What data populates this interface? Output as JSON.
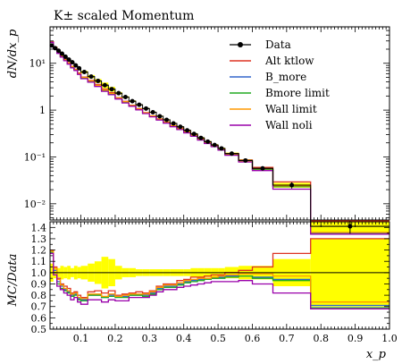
{
  "chart_data": {
    "type": "line",
    "title": "K± scaled Momentum",
    "ylabel_top": "dN/dx_p",
    "ylabel_bottom": "MC/Data",
    "xlabel": "x_p",
    "xlim": [
      0.01,
      1.0
    ],
    "ylim_top": [
      0.0045,
      60
    ],
    "yscale_top": "log",
    "ylim_bottom": [
      0.5,
      1.45
    ],
    "legend_position": "top-right",
    "x_ticks": [
      "0.1",
      "0.2",
      "0.3",
      "0.4",
      "0.5",
      "0.6",
      "0.7",
      "0.8",
      "0.9",
      "1.0"
    ],
    "y_ticks_top": [
      "10⁻²",
      "10⁻¹",
      "1",
      "10¹"
    ],
    "y_ticks_bottom": [
      "0.5",
      "0.6",
      "0.7",
      "0.8",
      "0.9",
      "1.0",
      "1.1",
      "1.2",
      "1.3",
      "1.4"
    ],
    "bin_edges": [
      0.01,
      0.02,
      0.03,
      0.04,
      0.05,
      0.06,
      0.07,
      0.08,
      0.09,
      0.1,
      0.12,
      0.14,
      0.16,
      0.18,
      0.2,
      0.22,
      0.24,
      0.26,
      0.28,
      0.3,
      0.32,
      0.34,
      0.36,
      0.38,
      0.4,
      0.42,
      0.44,
      0.46,
      0.48,
      0.5,
      0.52,
      0.56,
      0.6,
      0.66,
      0.77,
      1.0
    ],
    "data": {
      "name": "Data",
      "color": "#000000",
      "y": [
        24,
        21,
        18.5,
        16,
        13.8,
        12,
        10.5,
        9,
        7.8,
        6.5,
        5.2,
        4.2,
        3.4,
        2.8,
        2.3,
        1.9,
        1.55,
        1.3,
        1.08,
        0.9,
        0.74,
        0.62,
        0.52,
        0.44,
        0.37,
        0.31,
        0.255,
        0.212,
        0.18,
        0.152,
        0.118,
        0.084,
        0.057,
        0.025,
        0.0033
      ],
      "err_rel": [
        0.03,
        0.03,
        0.03,
        0.03,
        0.03,
        0.03,
        0.04,
        0.04,
        0.04,
        0.04,
        0.05,
        0.05,
        0.05,
        0.05,
        0.05,
        0.05,
        0.05,
        0.04,
        0.04,
        0.04,
        0.04,
        0.04,
        0.04,
        0.04,
        0.04,
        0.05,
        0.05,
        0.05,
        0.05,
        0.06,
        0.06,
        0.07,
        0.1,
        0.15,
        0.3
      ]
    },
    "band_rel": [
      0.08,
      0.05,
      0.04,
      0.06,
      0.05,
      0.06,
      0.04,
      0.06,
      0.05,
      0.06,
      0.08,
      0.1,
      0.14,
      0.12,
      0.06,
      0.04,
      0.04,
      0.03,
      0.03,
      0.03,
      0.03,
      0.03,
      0.03,
      0.03,
      0.03,
      0.04,
      0.04,
      0.04,
      0.04,
      0.04,
      0.05,
      0.06,
      0.06,
      0.12,
      0.3
    ],
    "band_color": "#ffff00",
    "series": [
      {
        "name": "Alt ktlow",
        "color": "#dd3322",
        "ratio": [
          1.2,
          1.05,
          0.95,
          0.9,
          0.88,
          0.86,
          0.82,
          0.83,
          0.8,
          0.78,
          0.83,
          0.84,
          0.82,
          0.84,
          0.8,
          0.81,
          0.82,
          0.83,
          0.82,
          0.84,
          0.88,
          0.9,
          0.9,
          0.93,
          0.94,
          0.96,
          0.96,
          0.97,
          0.98,
          0.98,
          1.0,
          1.02,
          1.05,
          1.17,
          1.3
        ]
      },
      {
        "name": "B_more",
        "color": "#3366cc",
        "ratio": [
          1.18,
          1.02,
          0.92,
          0.88,
          0.85,
          0.83,
          0.8,
          0.81,
          0.77,
          0.76,
          0.8,
          0.8,
          0.78,
          0.8,
          0.79,
          0.79,
          0.8,
          0.8,
          0.8,
          0.82,
          0.86,
          0.88,
          0.88,
          0.9,
          0.92,
          0.93,
          0.94,
          0.95,
          0.95,
          0.96,
          0.97,
          0.97,
          0.96,
          0.94,
          0.71
        ]
      },
      {
        "name": "Bmore limit",
        "color": "#22aa22",
        "ratio": [
          1.18,
          1.0,
          0.9,
          0.86,
          0.84,
          0.82,
          0.79,
          0.8,
          0.76,
          0.75,
          0.8,
          0.8,
          0.78,
          0.79,
          0.78,
          0.78,
          0.8,
          0.8,
          0.79,
          0.81,
          0.85,
          0.87,
          0.87,
          0.89,
          0.91,
          0.92,
          0.93,
          0.94,
          0.95,
          0.95,
          0.96,
          0.97,
          0.95,
          0.93,
          0.69
        ]
      },
      {
        "name": "Wall limit",
        "color": "#ff9900",
        "ratio": [
          1.19,
          1.04,
          0.94,
          0.89,
          0.86,
          0.84,
          0.81,
          0.82,
          0.78,
          0.77,
          0.81,
          0.81,
          0.79,
          0.81,
          0.79,
          0.8,
          0.81,
          0.81,
          0.81,
          0.83,
          0.87,
          0.89,
          0.89,
          0.91,
          0.93,
          0.94,
          0.95,
          0.95,
          0.96,
          0.97,
          0.98,
          0.99,
          0.99,
          0.97,
          0.74
        ]
      },
      {
        "name": "Wall noli",
        "color": "#9900aa",
        "ratio": [
          1.17,
          0.98,
          0.88,
          0.85,
          0.82,
          0.8,
          0.76,
          0.78,
          0.74,
          0.72,
          0.76,
          0.76,
          0.74,
          0.76,
          0.75,
          0.75,
          0.78,
          0.78,
          0.78,
          0.8,
          0.83,
          0.85,
          0.85,
          0.87,
          0.88,
          0.89,
          0.9,
          0.91,
          0.92,
          0.92,
          0.92,
          0.93,
          0.9,
          0.82,
          0.68
        ]
      }
    ]
  }
}
